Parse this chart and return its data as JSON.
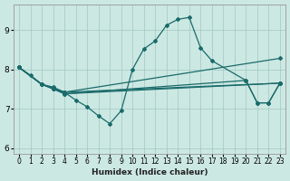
{
  "xlabel": "Humidex (Indice chaleur)",
  "xlim": [
    -0.5,
    23.5
  ],
  "ylim": [
    5.85,
    9.65
  ],
  "yticks": [
    6,
    7,
    8,
    9
  ],
  "xticks": [
    0,
    1,
    2,
    3,
    4,
    5,
    6,
    7,
    8,
    9,
    10,
    11,
    12,
    13,
    14,
    15,
    16,
    17,
    18,
    19,
    20,
    21,
    22,
    23
  ],
  "bg_color": "#cce8e2",
  "grid_color": "#a0c8c4",
  "line_color": "#1a6b6b",
  "series": [
    {
      "x": [
        0,
        1,
        2,
        3,
        4,
        5,
        6,
        7,
        8,
        9,
        10,
        11,
        12,
        13,
        14,
        15,
        16,
        17,
        20,
        21,
        22,
        23
      ],
      "y": [
        8.05,
        7.85,
        7.62,
        7.55,
        7.42,
        7.22,
        7.05,
        6.82,
        6.62,
        6.95,
        8.0,
        8.52,
        8.72,
        9.12,
        9.27,
        9.32,
        8.55,
        8.22,
        7.72,
        7.15,
        7.15,
        7.65
      ]
    },
    {
      "x": [
        0,
        2,
        3,
        4,
        23
      ],
      "y": [
        8.05,
        7.62,
        7.52,
        7.42,
        7.65
      ]
    },
    {
      "x": [
        0,
        2,
        3,
        4,
        23
      ],
      "y": [
        8.05,
        7.62,
        7.5,
        7.38,
        7.65
      ]
    },
    {
      "x": [
        0,
        2,
        3,
        4,
        23
      ],
      "y": [
        8.05,
        7.62,
        7.52,
        7.42,
        8.28
      ]
    },
    {
      "x": [
        0,
        2,
        3,
        4,
        20,
        21,
        22,
        23
      ],
      "y": [
        8.05,
        7.62,
        7.52,
        7.38,
        7.72,
        7.15,
        7.15,
        7.65
      ]
    }
  ]
}
